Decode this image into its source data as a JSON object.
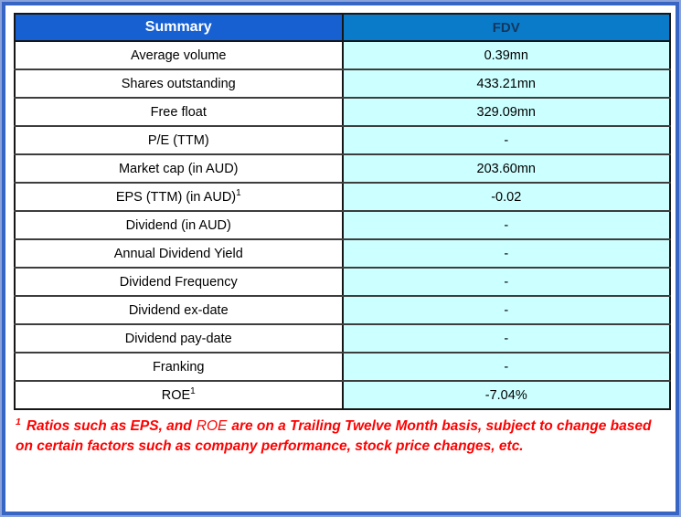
{
  "colors": {
    "frame_border": "#3765C3",
    "header_left_bg": "#1660D2",
    "header_right_bg": "#0A7BC8",
    "header_right_text": "#14375E",
    "value_cell_bg": "#CCFFFF",
    "footnote_text": "#FF0000"
  },
  "table": {
    "header": {
      "summary": "Summary",
      "ticker": "FDV"
    },
    "rows": [
      {
        "label": "Average volume",
        "value": "0.39mn"
      },
      {
        "label": "Shares outstanding",
        "value": "433.21mn"
      },
      {
        "label": "Free float",
        "value": "329.09mn"
      },
      {
        "label": "P/E (TTM)",
        "value": "-"
      },
      {
        "label": "Market cap (in AUD)",
        "value": "203.60mn"
      },
      {
        "label": "EPS (TTM) (in AUD)",
        "label_sup": "1",
        "value": "-0.02"
      },
      {
        "label": "Dividend (in AUD)",
        "value": "-"
      },
      {
        "label": "Annual Dividend Yield",
        "value": "-"
      },
      {
        "label": "Dividend Frequency",
        "value": "-"
      },
      {
        "label": "Dividend ex-date",
        "value": "-"
      },
      {
        "label": "Dividend pay-date",
        "value": "-"
      },
      {
        "label": "Franking",
        "value": "-"
      },
      {
        "label": "ROE",
        "label_sup": "1",
        "value": "-7.04%"
      }
    ]
  },
  "footnote": {
    "sup": "1",
    "part1": "Ratios such as EPS, and",
    "roe": "ROE",
    "part2": "are on a Trailing Twelve Month basis, subject to change based on certain factors such as company performance, stock price changes, etc."
  }
}
